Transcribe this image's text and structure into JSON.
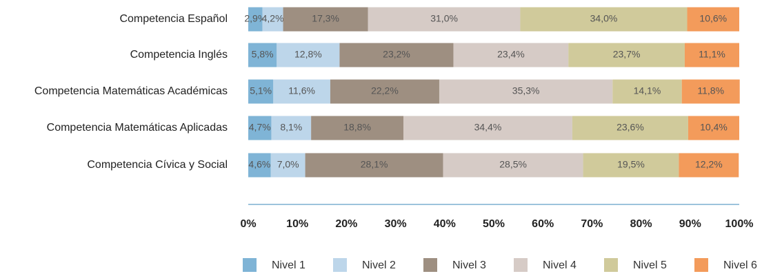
{
  "chart_data": {
    "type": "stacked-bar-horizontal",
    "categories": [
      "Competencia Español",
      "Competencia Inglés",
      "Competencia Matemáticas Académicas",
      "Competencia Matemáticas Aplicadas",
      "Competencia Cívica y Social"
    ],
    "series": [
      {
        "name": "Nivel 1",
        "color": "#7fb4d6",
        "values": [
          2.9,
          5.8,
          5.1,
          4.7,
          4.6
        ],
        "value_labels": [
          "2,9%",
          "5,8%",
          "5,1%",
          "4,7%",
          "4,6%"
        ]
      },
      {
        "name": "Nivel 2",
        "color": "#bdd6ea",
        "values": [
          4.2,
          12.8,
          11.6,
          8.1,
          7.0
        ],
        "value_labels": [
          "4,2%",
          "12,8%",
          "11,6%",
          "8,1%",
          "7,0%"
        ]
      },
      {
        "name": "Nivel 3",
        "color": "#9e8f81",
        "values": [
          17.3,
          23.2,
          22.2,
          18.8,
          28.1
        ],
        "value_labels": [
          "17,3%",
          "23,2%",
          "22,2%",
          "18,8%",
          "28,1%"
        ]
      },
      {
        "name": "Nivel 4",
        "color": "#d6cbc6",
        "values": [
          31.0,
          23.4,
          35.3,
          34.4,
          28.5
        ],
        "value_labels": [
          "31,0%",
          "23,4%",
          "35,3%",
          "34,4%",
          "28,5%"
        ]
      },
      {
        "name": "Nivel 5",
        "color": "#d0ca9b",
        "values": [
          34.0,
          23.7,
          14.1,
          23.6,
          19.5
        ],
        "value_labels": [
          "34,0%",
          "23,7%",
          "14,1%",
          "23,6%",
          "19,5%"
        ]
      },
      {
        "name": "Nivel 6",
        "color": "#f39b5b",
        "values": [
          10.6,
          11.1,
          11.8,
          10.4,
          12.2
        ],
        "value_labels": [
          "10,6%",
          "11,1%",
          "11,8%",
          "10,4%",
          "12,2%"
        ]
      }
    ],
    "xlim": [
      0,
      100
    ],
    "xticks": [
      {
        "value": 0,
        "label": "0%"
      },
      {
        "value": 10,
        "label": "10%"
      },
      {
        "value": 20,
        "label": "20%"
      },
      {
        "value": 30,
        "label": "30%"
      },
      {
        "value": 40,
        "label": "40%"
      },
      {
        "value": 50,
        "label": "50%"
      },
      {
        "value": 60,
        "label": "60%"
      },
      {
        "value": 70,
        "label": "70%"
      },
      {
        "value": 80,
        "label": "80%"
      },
      {
        "value": 90,
        "label": "90%"
      },
      {
        "value": 100,
        "label": "100%"
      }
    ],
    "legend": "bottom"
  }
}
